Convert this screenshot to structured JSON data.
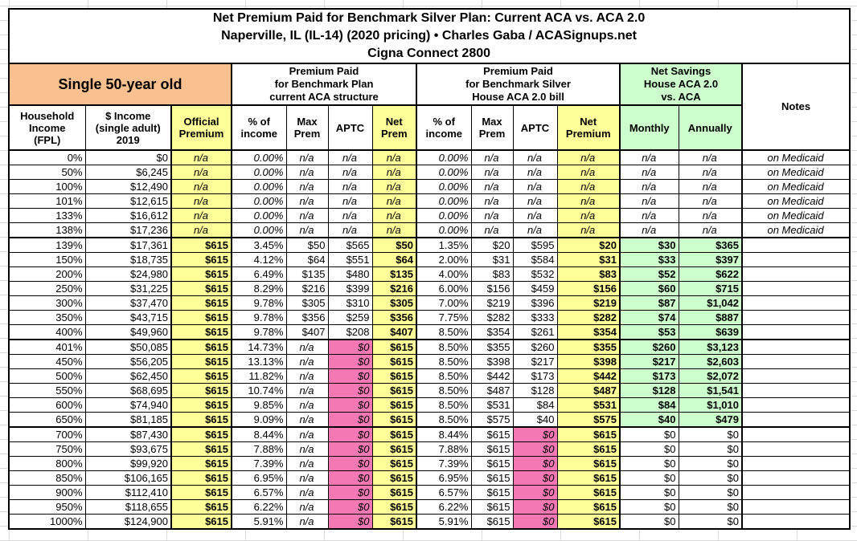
{
  "title": {
    "line1": "Net Premium Paid for Benchmark Silver Plan: Current ACA vs. ACA 2.0",
    "line2": "Naperville, IL (IL-14) (2020 pricing) • Charles Gaba / ACASignups.net",
    "line3": "Cigna Connect 2800"
  },
  "groups": {
    "demographic": "Single 50-year old",
    "aca": "Premium Paid\nfor Benchmark Plan\ncurrent ACA structure",
    "house": "Premium Paid\nfor Benchmark Silver\nHouse ACA 2.0 bill",
    "savings": "Net Savings\nHouse ACA 2.0\nvs. ACA",
    "notes": "Notes"
  },
  "columns": [
    "Household\nIncome\n(FPL)",
    "$ Income\n(single adult)\n2019",
    "Official\nPremium",
    "% of\nincome",
    "Max\nPrem",
    "APTC",
    "Net\nPrem",
    "% of\nincome",
    "Max\nPrem",
    "APTC",
    "Net\nPremium",
    "Monthly",
    "Annually"
  ],
  "colors": {
    "demographic_header": "#FAC090",
    "premium_highlight": "#FFFF99",
    "savings_highlight": "#CCFFCC",
    "zero_aptc_highlight": "#F478B4",
    "grid_border": "#000000"
  },
  "rows": [
    {
      "type": "medicaid",
      "cells": [
        "0%",
        "$0",
        "n/a",
        "0.00%",
        "n/a",
        "n/a",
        "n/a",
        "0.00%",
        "n/a",
        "n/a",
        "n/a",
        "n/a",
        "n/a",
        "on Medicaid"
      ]
    },
    {
      "type": "medicaid",
      "cells": [
        "50%",
        "$6,245",
        "n/a",
        "0.00%",
        "n/a",
        "n/a",
        "n/a",
        "0.00%",
        "n/a",
        "n/a",
        "n/a",
        "n/a",
        "n/a",
        "on Medicaid"
      ]
    },
    {
      "type": "medicaid",
      "cells": [
        "100%",
        "$12,490",
        "n/a",
        "0.00%",
        "n/a",
        "n/a",
        "n/a",
        "0.00%",
        "n/a",
        "n/a",
        "n/a",
        "n/a",
        "n/a",
        "on Medicaid"
      ]
    },
    {
      "type": "medicaid",
      "cells": [
        "101%",
        "$12,615",
        "n/a",
        "0.00%",
        "n/a",
        "n/a",
        "n/a",
        "0.00%",
        "n/a",
        "n/a",
        "n/a",
        "n/a",
        "n/a",
        "on Medicaid"
      ]
    },
    {
      "type": "medicaid",
      "cells": [
        "133%",
        "$16,612",
        "n/a",
        "0.00%",
        "n/a",
        "n/a",
        "n/a",
        "0.00%",
        "n/a",
        "n/a",
        "n/a",
        "n/a",
        "n/a",
        "on Medicaid"
      ]
    },
    {
      "type": "medicaid",
      "cells": [
        "138%",
        "$17,236",
        "n/a",
        "0.00%",
        "n/a",
        "n/a",
        "n/a",
        "0.00%",
        "n/a",
        "n/a",
        "n/a",
        "n/a",
        "n/a",
        "on Medicaid"
      ]
    },
    {
      "type": "subsidized",
      "cells": [
        "139%",
        "$17,361",
        "$615",
        "3.45%",
        "$50",
        "$565",
        "$50",
        "1.35%",
        "$20",
        "$595",
        "$20",
        "$30",
        "$365",
        ""
      ]
    },
    {
      "type": "subsidized",
      "cells": [
        "150%",
        "$18,735",
        "$615",
        "4.12%",
        "$64",
        "$551",
        "$64",
        "2.00%",
        "$31",
        "$584",
        "$31",
        "$33",
        "$397",
        ""
      ]
    },
    {
      "type": "subsidized",
      "cells": [
        "200%",
        "$24,980",
        "$615",
        "6.49%",
        "$135",
        "$480",
        "$135",
        "4.00%",
        "$83",
        "$532",
        "$83",
        "$52",
        "$622",
        ""
      ]
    },
    {
      "type": "subsidized",
      "cells": [
        "250%",
        "$31,225",
        "$615",
        "8.29%",
        "$216",
        "$399",
        "$216",
        "6.00%",
        "$156",
        "$459",
        "$156",
        "$60",
        "$715",
        ""
      ]
    },
    {
      "type": "subsidized",
      "cells": [
        "300%",
        "$37,470",
        "$615",
        "9.78%",
        "$305",
        "$310",
        "$305",
        "7.00%",
        "$219",
        "$396",
        "$219",
        "$87",
        "$1,042",
        ""
      ]
    },
    {
      "type": "subsidized",
      "cells": [
        "350%",
        "$43,715",
        "$615",
        "9.78%",
        "$356",
        "$259",
        "$356",
        "7.75%",
        "$282",
        "$333",
        "$282",
        "$74",
        "$887",
        ""
      ]
    },
    {
      "type": "subsidized",
      "cells": [
        "400%",
        "$49,960",
        "$615",
        "9.78%",
        "$407",
        "$208",
        "$407",
        "8.50%",
        "$354",
        "$261",
        "$354",
        "$53",
        "$639",
        ""
      ]
    },
    {
      "type": "cliff",
      "cells": [
        "401%",
        "$50,085",
        "$615",
        "14.73%",
        "n/a",
        "$0",
        "$615",
        "8.50%",
        "$355",
        "$260",
        "$355",
        "$260",
        "$3,123",
        ""
      ]
    },
    {
      "type": "cliff",
      "cells": [
        "450%",
        "$56,205",
        "$615",
        "13.13%",
        "n/a",
        "$0",
        "$615",
        "8.50%",
        "$398",
        "$217",
        "$398",
        "$217",
        "$2,603",
        ""
      ]
    },
    {
      "type": "cliff",
      "cells": [
        "500%",
        "$62,450",
        "$615",
        "11.82%",
        "n/a",
        "$0",
        "$615",
        "8.50%",
        "$442",
        "$173",
        "$442",
        "$173",
        "$2,072",
        ""
      ]
    },
    {
      "type": "cliff",
      "cells": [
        "550%",
        "$68,695",
        "$615",
        "10.74%",
        "n/a",
        "$0",
        "$615",
        "8.50%",
        "$487",
        "$128",
        "$487",
        "$128",
        "$1,541",
        ""
      ]
    },
    {
      "type": "cliff",
      "cells": [
        "600%",
        "$74,940",
        "$615",
        "9.85%",
        "n/a",
        "$0",
        "$615",
        "8.50%",
        "$531",
        "$84",
        "$531",
        "$84",
        "$1,010",
        ""
      ]
    },
    {
      "type": "cliff",
      "cells": [
        "650%",
        "$81,185",
        "$615",
        "9.09%",
        "n/a",
        "$0",
        "$615",
        "8.50%",
        "$575",
        "$40",
        "$575",
        "$40",
        "$479",
        ""
      ]
    },
    {
      "type": "over650",
      "cells": [
        "700%",
        "$87,430",
        "$615",
        "8.44%",
        "n/a",
        "$0",
        "$615",
        "8.44%",
        "$615",
        "$0",
        "$615",
        "$0",
        "$0",
        ""
      ]
    },
    {
      "type": "over650",
      "cells": [
        "750%",
        "$93,675",
        "$615",
        "7.88%",
        "n/a",
        "$0",
        "$615",
        "7.88%",
        "$615",
        "$0",
        "$615",
        "$0",
        "$0",
        ""
      ]
    },
    {
      "type": "over650",
      "cells": [
        "800%",
        "$99,920",
        "$615",
        "7.39%",
        "n/a",
        "$0",
        "$615",
        "7.39%",
        "$615",
        "$0",
        "$615",
        "$0",
        "$0",
        ""
      ]
    },
    {
      "type": "over650",
      "cells": [
        "850%",
        "$106,165",
        "$615",
        "6.95%",
        "n/a",
        "$0",
        "$615",
        "6.95%",
        "$615",
        "$0",
        "$615",
        "$0",
        "$0",
        ""
      ]
    },
    {
      "type": "over650",
      "cells": [
        "900%",
        "$112,410",
        "$615",
        "6.57%",
        "n/a",
        "$0",
        "$615",
        "6.57%",
        "$615",
        "$0",
        "$615",
        "$0",
        "$0",
        ""
      ]
    },
    {
      "type": "over650",
      "cells": [
        "950%",
        "$118,655",
        "$615",
        "6.22%",
        "n/a",
        "$0",
        "$615",
        "6.22%",
        "$615",
        "$0",
        "$615",
        "$0",
        "$0",
        ""
      ]
    },
    {
      "type": "over650",
      "cells": [
        "1000%",
        "$124,900",
        "$615",
        "5.91%",
        "n/a",
        "$0",
        "$615",
        "5.91%",
        "$615",
        "$0",
        "$615",
        "$0",
        "$0",
        ""
      ]
    }
  ]
}
